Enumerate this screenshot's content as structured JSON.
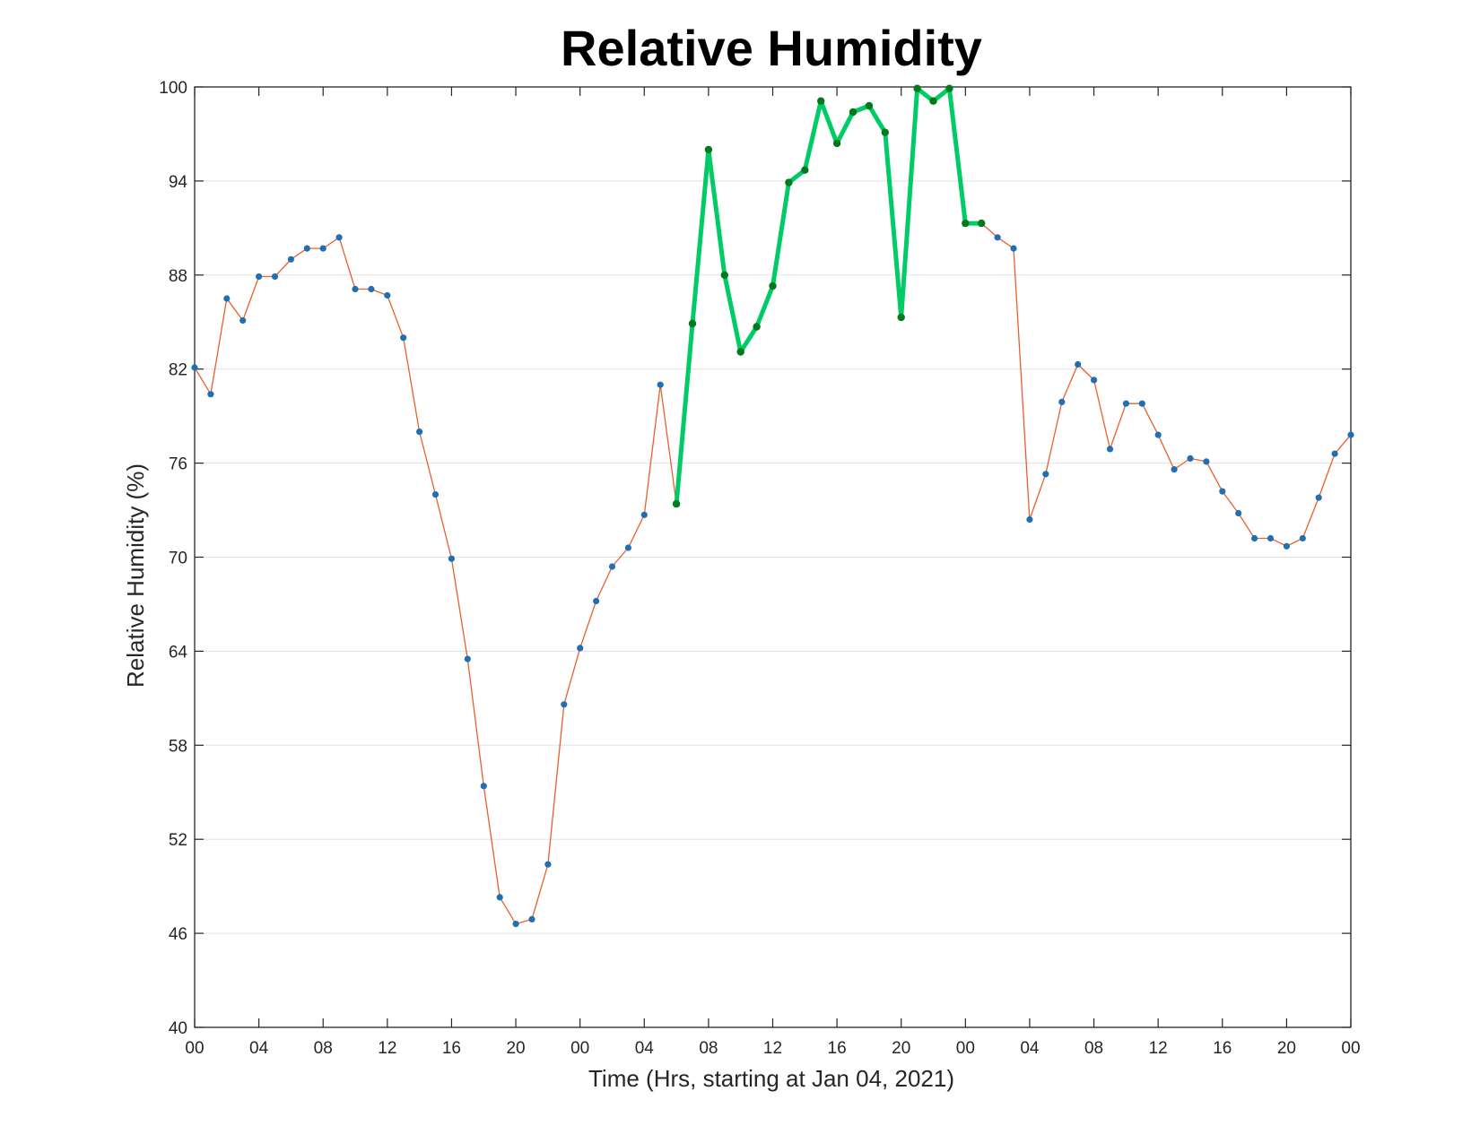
{
  "chart_data": {
    "type": "line",
    "title": "Relative Humidity",
    "xlabel": "Time (Hrs, starting at Jan 04, 2021)",
    "ylabel": "Relative Humidity (%)",
    "x_unit": "hours",
    "xlim": [
      0,
      72
    ],
    "ylim": [
      40,
      100
    ],
    "yticks": [
      40,
      46,
      52,
      58,
      64,
      70,
      76,
      82,
      88,
      94,
      100
    ],
    "xticks": [
      0,
      4,
      8,
      12,
      16,
      20,
      24,
      28,
      32,
      36,
      40,
      44,
      48,
      52,
      56,
      60,
      64,
      68,
      72
    ],
    "xtick_labels": [
      "00",
      "04",
      "08",
      "12",
      "16",
      "20",
      "00",
      "04",
      "08",
      "12",
      "16",
      "20",
      "00",
      "04",
      "08",
      "12",
      "16",
      "20",
      "00"
    ],
    "grid": "horizontal",
    "series": [
      {
        "line_color": "#e8602c",
        "marker_color": "#1f6fb4",
        "x": [
          0,
          1,
          2,
          3,
          4,
          5,
          6,
          7,
          8,
          9,
          10,
          11,
          12,
          13,
          14,
          15,
          16,
          17,
          18,
          19,
          20,
          21,
          22,
          23,
          24,
          25,
          26,
          27,
          28,
          29,
          30,
          31,
          32,
          33,
          34,
          35,
          36,
          37,
          38,
          39,
          40,
          41,
          42,
          43,
          44,
          45,
          46,
          47,
          48,
          49,
          50,
          51,
          52,
          53,
          54,
          55,
          56,
          57,
          58,
          59,
          60,
          61,
          62,
          63,
          64,
          65,
          66,
          67,
          68,
          69,
          70,
          71,
          72
        ],
        "values": [
          82.1,
          80.4,
          86.5,
          85.1,
          87.9,
          87.9,
          89.0,
          89.7,
          89.7,
          90.4,
          87.1,
          87.1,
          86.7,
          84.0,
          78.0,
          74.0,
          69.9,
          63.5,
          55.4,
          48.3,
          46.6,
          46.9,
          50.4,
          60.6,
          64.2,
          67.2,
          69.4,
          70.6,
          72.7,
          81.0,
          73.4,
          84.9,
          96.0,
          88.0,
          83.1,
          84.7,
          87.3,
          93.9,
          94.7,
          99.1,
          96.4,
          98.4,
          98.8,
          97.1,
          85.3,
          99.9,
          99.1,
          99.9,
          91.3,
          91.3,
          90.4,
          89.7,
          72.4,
          75.3,
          79.9,
          82.3,
          81.3,
          76.9,
          79.8,
          79.8,
          77.8,
          75.6,
          76.3,
          76.1,
          74.2,
          72.8,
          71.2,
          71.2,
          70.7,
          71.2,
          73.8,
          76.6,
          77.8
        ]
      },
      {
        "line_color": "#00cc66",
        "marker_color": "#007a1a",
        "x": [
          30,
          31,
          32,
          33,
          34,
          35,
          36,
          37,
          38,
          39,
          40,
          41,
          42,
          43,
          44,
          45,
          46,
          47,
          48,
          49
        ],
        "values": [
          73.4,
          84.9,
          96.0,
          88.0,
          83.1,
          84.7,
          87.3,
          93.9,
          94.7,
          99.1,
          96.4,
          98.4,
          98.8,
          97.1,
          85.3,
          99.9,
          99.1,
          99.9,
          91.3,
          91.3
        ]
      }
    ]
  }
}
